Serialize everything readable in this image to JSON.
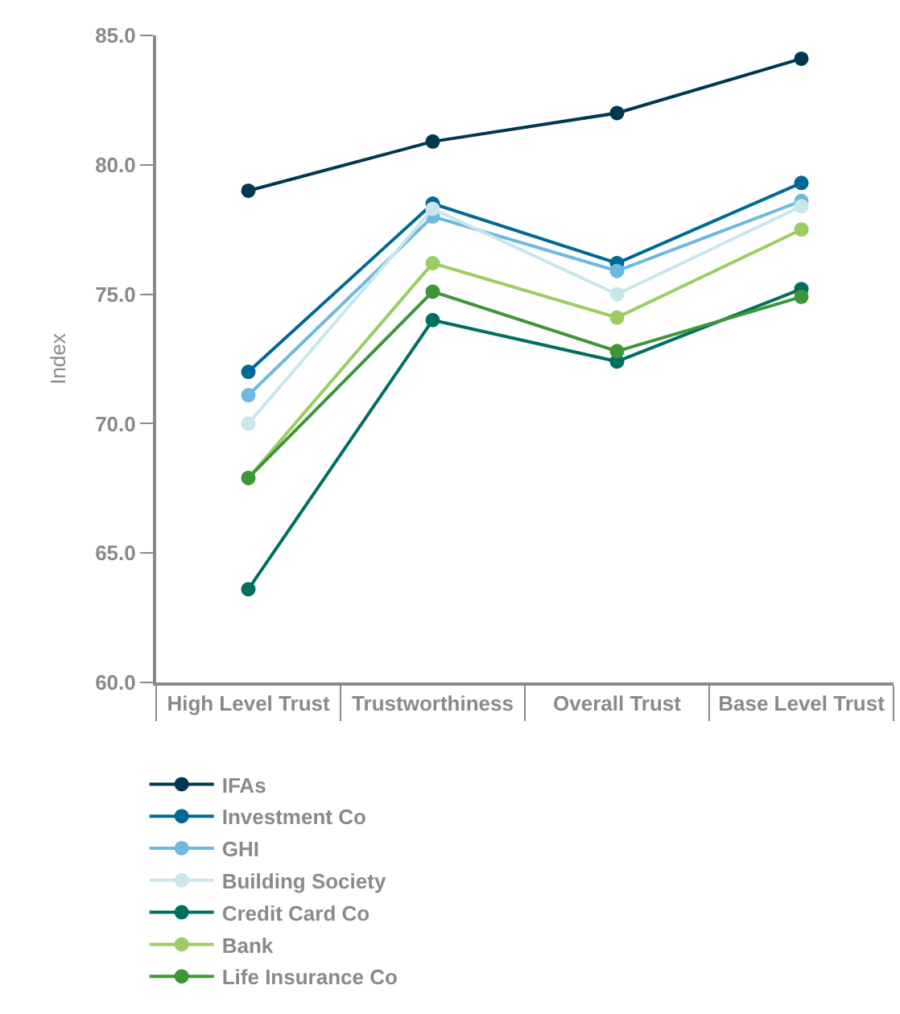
{
  "chart_data": {
    "type": "line",
    "ylabel": "Index",
    "categories": [
      "High Level Trust",
      "Trustworthiness",
      "Overall Trust",
      "Base Level Trust"
    ],
    "ylim": [
      60,
      85
    ],
    "yticks": [
      {
        "value": 60,
        "label": "60.0"
      },
      {
        "value": 65,
        "label": "65.0"
      },
      {
        "value": 70,
        "label": "70.0"
      },
      {
        "value": 75,
        "label": "75.0"
      },
      {
        "value": 80,
        "label": "80.0"
      },
      {
        "value": 85,
        "label": "85.0"
      }
    ],
    "legend": "bottom",
    "marker": "circle",
    "line_style": "solid",
    "series": [
      {
        "name": "IFAs",
        "color": "#00394f",
        "values": [
          79.0,
          80.9,
          82.0,
          84.1
        ]
      },
      {
        "name": "Investment Co",
        "color": "#006994",
        "values": [
          72.0,
          78.5,
          76.2,
          79.3
        ]
      },
      {
        "name": "GHI",
        "color": "#6fb8de",
        "values": [
          71.1,
          78.0,
          75.9,
          78.6
        ]
      },
      {
        "name": "Building Society",
        "color": "#c8e6ec",
        "values": [
          70.0,
          78.3,
          75.0,
          78.4
        ]
      },
      {
        "name": "Credit Card Co",
        "color": "#006f5f",
        "values": [
          63.6,
          74.0,
          72.4,
          75.2
        ]
      },
      {
        "name": "Bank",
        "color": "#9ccc65",
        "values": [
          67.9,
          76.2,
          74.1,
          77.5
        ]
      },
      {
        "name": "Life Insurance Co",
        "color": "#3d9637",
        "values": [
          67.9,
          75.1,
          72.8,
          74.9
        ]
      }
    ]
  }
}
